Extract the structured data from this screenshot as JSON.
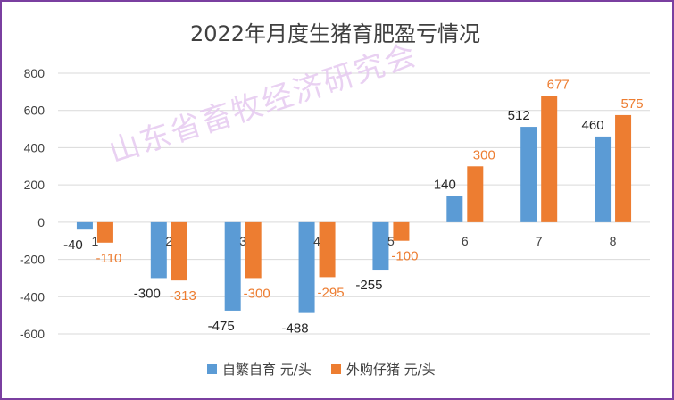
{
  "chart_data": {
    "type": "bar",
    "title": "2022年月度生猪育肥盈亏情况",
    "categories": [
      "1",
      "2",
      "3",
      "4",
      "5",
      "6",
      "7",
      "8"
    ],
    "series": [
      {
        "name": "自繁自育 元/头",
        "color": "#5b9bd5",
        "values": [
          -40,
          -300,
          -475,
          -488,
          -255,
          140,
          512,
          460
        ]
      },
      {
        "name": "外购仔猪 元/头",
        "color": "#ed7d31",
        "values": [
          -110,
          -313,
          -300,
          -295,
          -100,
          300,
          677,
          575
        ]
      }
    ],
    "ylim": [
      -600,
      800
    ],
    "yticks": [
      800,
      600,
      400,
      200,
      0,
      -200,
      -400,
      -600
    ],
    "legend_position": "bottom",
    "watermark": "山东省畜牧经济研究会"
  }
}
